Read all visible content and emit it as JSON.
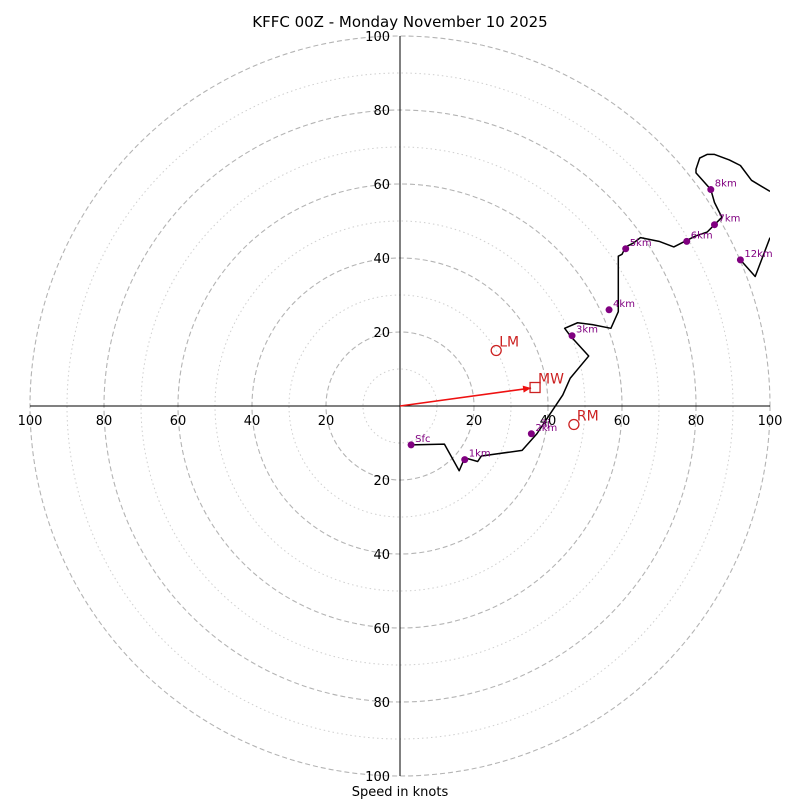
{
  "chart_data": {
    "type": "hodograph",
    "title": "KFFC 00Z - Monday November 10 2025",
    "xlabel": "Speed in knots",
    "xlim": [
      -100,
      100
    ],
    "ylim": [
      -100,
      100
    ],
    "major_rings": [
      20,
      40,
      60,
      80,
      100
    ],
    "minor_rings": [
      10,
      30,
      50,
      70,
      90
    ],
    "tick_values": [
      20,
      40,
      60,
      80,
      100
    ],
    "tick_labels": [
      "20",
      "40",
      "60",
      "80",
      "100"
    ],
    "trace": [
      [
        3,
        -10.5
      ],
      [
        12,
        -10.3
      ],
      [
        16,
        -17.5
      ],
      [
        17.5,
        -14
      ],
      [
        21,
        -15
      ],
      [
        22,
        -13.5
      ],
      [
        33,
        -12
      ],
      [
        37,
        -7.5
      ],
      [
        40,
        -3
      ],
      [
        44,
        3
      ],
      [
        46,
        7.5
      ],
      [
        51,
        13.5
      ],
      [
        46,
        19
      ],
      [
        44.5,
        21
      ],
      [
        48,
        22.5
      ],
      [
        52,
        22
      ],
      [
        57,
        21
      ],
      [
        59,
        25.5
      ],
      [
        59,
        34
      ],
      [
        59,
        40.5
      ],
      [
        60,
        41
      ],
      [
        61,
        43
      ],
      [
        63,
        44
      ],
      [
        65,
        45.5
      ],
      [
        70,
        44.5
      ],
      [
        74,
        43
      ],
      [
        77,
        44.5
      ],
      [
        80,
        46
      ],
      [
        83,
        47
      ],
      [
        85,
        49
      ],
      [
        87,
        51
      ],
      [
        85,
        55
      ],
      [
        84,
        58.5
      ],
      [
        80,
        63
      ],
      [
        80,
        64
      ],
      [
        81,
        67
      ],
      [
        83,
        68
      ],
      [
        85,
        68
      ],
      [
        89,
        66.5
      ],
      [
        92,
        65
      ],
      [
        95,
        61
      ],
      [
        100,
        58
      ]
    ],
    "trace_tail": [
      [
        100,
        45.5
      ],
      [
        96,
        35
      ],
      [
        92,
        39.5
      ]
    ],
    "height_markers": [
      {
        "label": "Sfc",
        "u": 3,
        "v": -10.5
      },
      {
        "label": "1km",
        "u": 17.5,
        "v": -14.5
      },
      {
        "label": "2km",
        "u": 35.5,
        "v": -7.5
      },
      {
        "label": "3km",
        "u": 46.5,
        "v": 19
      },
      {
        "label": "4km",
        "u": 56.5,
        "v": 26
      },
      {
        "label": "5km",
        "u": 61,
        "v": 42.5
      },
      {
        "label": "6km",
        "u": 77.5,
        "v": 44.5
      },
      {
        "label": "7km",
        "u": 85,
        "v": 49
      },
      {
        "label": "8km",
        "u": 84,
        "v": 58.5
      },
      {
        "label": "12km",
        "u": 92,
        "v": 39.5
      }
    ],
    "storm_motion": [
      {
        "label": "LM",
        "u": 26,
        "v": 15,
        "marker": "circle"
      },
      {
        "label": "MW",
        "u": 36.5,
        "v": 5,
        "marker": "square"
      },
      {
        "label": "RM",
        "u": 47,
        "v": -5,
        "marker": "circle"
      }
    ],
    "mean_wind_vector": {
      "u": 36.5,
      "v": 5
    },
    "extra_labels": [
      {
        "text": "3j",
        "u": 38,
        "v": -5.5
      }
    ],
    "colors": {
      "trace": "#000000",
      "markers": "#800080",
      "storm": "#cc2222",
      "vector": "#ee1111",
      "major_grid": "#b4b4b4",
      "minor_grid": "#cfcfcf",
      "axes": "#000000"
    }
  }
}
